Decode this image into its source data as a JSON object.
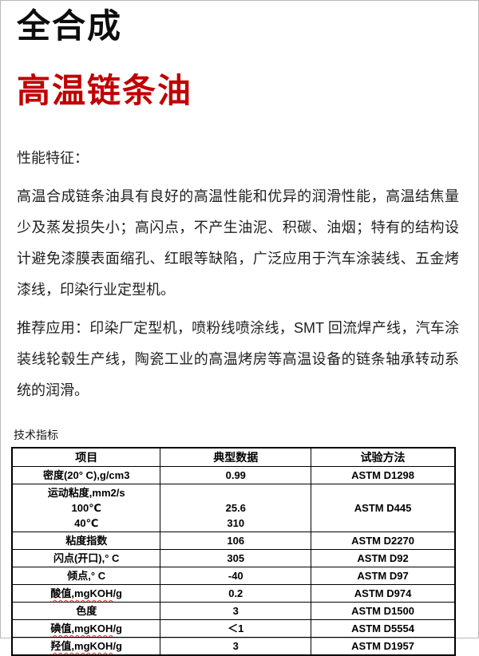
{
  "page": {
    "title_black": "全合成",
    "title_red": "高温链条油",
    "section1_heading": "性能特征：",
    "para1": "高温合成链条油具有良好的高温性能和优异的润滑性能，高温结焦量少及蒸发损失小；高闪点，不产生油泥、积碳、油烟；特有的结构设计避免漆膜表面缩孔、红眼等缺陷，广泛应用于汽车涂装线、五金烤漆线，印染行业定型机。",
    "para2": "推荐应用：印染厂定型机，喷粉线喷涂线，SMT 回流焊产线，汽车涂装线轮毂生产线，陶瓷工业的高温烤房等高温设备的链条轴承转动系统的润滑。",
    "table_caption": "技术指标"
  },
  "colors": {
    "title_red": "#c00000",
    "squiggle_red": "#ff2020"
  },
  "table": {
    "headers": [
      "项目",
      "典型数据",
      "试验方法"
    ],
    "rows": [
      {
        "item": [
          "密度(20° C),g/cm3"
        ],
        "value": [
          "0.99"
        ],
        "method": "ASTM D1298"
      },
      {
        "item": [
          "运动粘度,mm2/s",
          "100℃",
          "40℃"
        ],
        "value": [
          "",
          "25.6",
          "310"
        ],
        "method": "ASTM D445"
      },
      {
        "item": [
          "粘度指数"
        ],
        "value": [
          "106"
        ],
        "method": "ASTM D2270"
      },
      {
        "item": [
          "闪点(开口),° C"
        ],
        "value": [
          "305"
        ],
        "method": "ASTM D92"
      },
      {
        "item": [
          "倾点,° C"
        ],
        "value": [
          "-40"
        ],
        "method": "ASTM D97"
      },
      {
        "item": [
          "酸值,mgKOH/g"
        ],
        "value": [
          "0.2"
        ],
        "method": "ASTM D974",
        "wavy": "酸值,mgKOH"
      },
      {
        "item": [
          "色度"
        ],
        "value": [
          "3"
        ],
        "method": "ASTM D1500"
      },
      {
        "item": [
          "碘值,mgKOH/g"
        ],
        "value": [
          "＜1"
        ],
        "method": "ASTM D5554",
        "wavy": "碘值,mgKOH"
      },
      {
        "item": [
          "羟值,mgKOH/g"
        ],
        "value": [
          "3"
        ],
        "method": "ASTM D1957",
        "wavy": "羟值,mgKOH"
      }
    ]
  }
}
